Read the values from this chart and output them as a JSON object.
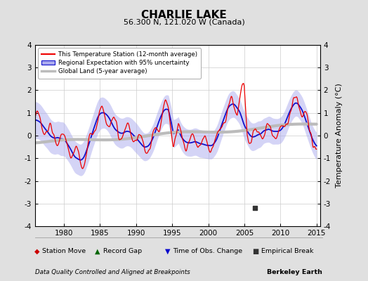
{
  "title": "CHARLIE LAKE",
  "subtitle": "56.300 N, 121.020 W (Canada)",
  "footer_left": "Data Quality Controlled and Aligned at Breakpoints",
  "footer_right": "Berkeley Earth",
  "xlabel_ticks": [
    1980,
    1985,
    1990,
    1995,
    2000,
    2005,
    2010,
    2015
  ],
  "ylim": [
    -4,
    4
  ],
  "yticks": [
    -4,
    -3,
    -2,
    -1,
    0,
    1,
    2,
    3,
    4
  ],
  "ylabel": "Temperature Anomaly (°C)",
  "xlim": [
    1976,
    2015.5
  ],
  "empirical_break_year": 2006.5,
  "empirical_break_value": -3.2,
  "bg_color": "#e0e0e0",
  "plot_bg_color": "#ffffff",
  "red_color": "#ee0000",
  "blue_color": "#1111cc",
  "blue_fill_color": "#aaaaee",
  "gray_color": "#bbbbbb",
  "grid_color": "#cccccc",
  "legend_labels": [
    "This Temperature Station (12-month average)",
    "Regional Expectation with 95% uncertainty",
    "Global Land (5-year average)"
  ],
  "bottom_legend": [
    {
      "marker": "D",
      "color": "#cc0000",
      "label": "Station Move"
    },
    {
      "marker": "^",
      "color": "#006600",
      "label": "Record Gap"
    },
    {
      "marker": "v",
      "color": "#0000cc",
      "label": "Time of Obs. Change"
    },
    {
      "marker": "s",
      "color": "#333333",
      "label": "Empirical Break"
    }
  ]
}
